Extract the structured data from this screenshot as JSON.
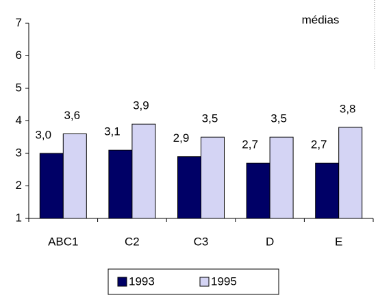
{
  "chart_data": {
    "type": "bar",
    "annotation": "médias",
    "categories": [
      "ABC1",
      "C2",
      "C3",
      "D",
      "E"
    ],
    "series": [
      {
        "name": "1993",
        "color": "#000066",
        "values": [
          3.0,
          3.1,
          2.9,
          2.7,
          2.7
        ],
        "value_labels": [
          "3,0",
          "3,1",
          "2,9",
          "2,7",
          "2,7"
        ]
      },
      {
        "name": "1995",
        "color": "#d4d4f4",
        "values": [
          3.6,
          3.9,
          3.5,
          3.5,
          3.8
        ],
        "value_labels": [
          "3,6",
          "3,9",
          "3,5",
          "3,5",
          "3,8"
        ]
      }
    ],
    "ylim": [
      1,
      7
    ],
    "yticks": [
      1,
      2,
      3,
      4,
      5,
      6,
      7
    ],
    "legend": "bottom"
  }
}
